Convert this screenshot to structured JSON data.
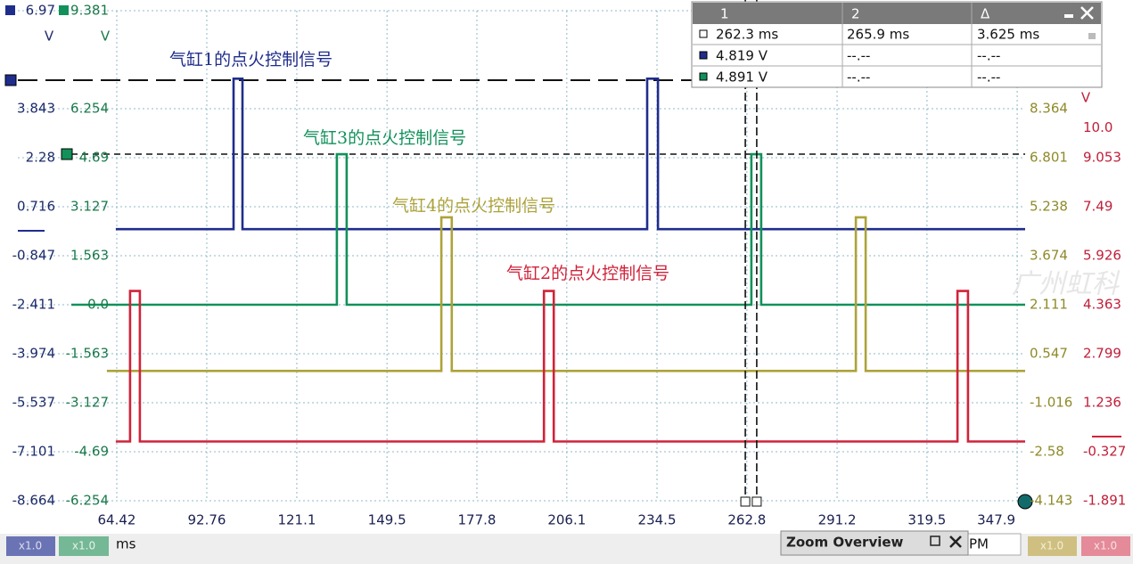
{
  "chart_data": {
    "type": "line",
    "x_unit": "ms",
    "xlim": [
      33.27,
      350.4
    ],
    "xticks": [
      64.42,
      92.76,
      121.1,
      149.5,
      177.8,
      206.1,
      234.5,
      262.8,
      291.2,
      319.5,
      347.9
    ],
    "grid": true,
    "channels": [
      {
        "name": "气缸1的点火控制信号",
        "color": "#1f2d8c",
        "unit": "V",
        "ylim": [
          -8.664,
          6.97
        ],
        "yticks": [
          6.97,
          3.843,
          2.28,
          0.716,
          -0.847,
          -2.411,
          -3.974,
          -5.537,
          -7.101,
          -8.664
        ],
        "x": [
          64.1,
          101.2,
          101.2,
          104.0,
          104.0,
          231.4,
          231.4,
          234.8,
          234.8,
          350.4
        ],
        "values": [
          0,
          0,
          4.8,
          4.8,
          0,
          0,
          4.8,
          4.8,
          0,
          0
        ]
      },
      {
        "name": "气缸3的点火控制信号",
        "color": "#12915a",
        "unit": "V",
        "ylim": [
          -6.254,
          9.381
        ],
        "yticks": [
          9.381,
          6.254,
          4.69,
          3.127,
          1.563,
          {
            "value": 0,
            "label": "0.0"
          },
          -1.563,
          -3.127,
          -4.69,
          -6.254
        ],
        "x": [
          50.1,
          133.7,
          133.7,
          136.8,
          136.8,
          264.2,
          264.2,
          267.3,
          267.3,
          350.4
        ],
        "values": [
          0,
          0,
          4.8,
          4.8,
          0,
          0,
          4.8,
          4.8,
          0,
          0
        ]
      },
      {
        "name": "气缸4的点火控制信号",
        "color": "#ada23a",
        "ylim": [
          -4.143,
          11.492
        ],
        "yticks": [
          8.364,
          6.801,
          5.238,
          3.674,
          2.111,
          0.547,
          -1.016,
          -2.58,
          -4.143
        ],
        "x": [
          61.3,
          166.6,
          166.6,
          169.9,
          169.9,
          297.1,
          297.1,
          300.2,
          300.2,
          350.4
        ],
        "values": [
          0,
          0,
          4.9,
          4.9,
          0,
          0,
          4.9,
          4.9,
          0,
          0
        ]
      },
      {
        "name": "气缸2的点火控制信号",
        "color": "#d0233a",
        "unit": "V",
        "ylim": [
          -1.891,
          13.744
        ],
        "yticks": [
          {
            "value": 10,
            "label": "10.0"
          },
          9.053,
          7.49,
          5.926,
          4.363,
          2.799,
          1.236,
          -0.327,
          -1.891
        ],
        "x": [
          64.1,
          68.6,
          68.6,
          71.7,
          71.7,
          198.9,
          198.9,
          202.0,
          202.0,
          329.1,
          329.1,
          332.4,
          332.4,
          350.4
        ],
        "values": [
          0,
          0,
          4.8,
          4.8,
          0,
          0,
          4.8,
          4.8,
          0,
          0,
          4.8,
          4.8,
          0,
          0
        ]
      }
    ],
    "cursors": [
      262.3,
      265.9
    ],
    "watermark": "广州虹科"
  },
  "cursor_table": {
    "headers": [
      "1",
      "2",
      "Δ"
    ],
    "rows": [
      [
        "262.3 ms",
        "265.9 ms",
        "3.625 ms"
      ],
      [
        "4.819 V",
        "--.--",
        "--.--"
      ],
      [
        "4.891 V",
        "--.--",
        "--.--"
      ]
    ]
  },
  "bottom_bar": {
    "scales": [
      "x1.0",
      "x1.0",
      "x1.0",
      "x1.0"
    ],
    "unit": "ms",
    "zoom_title": "Zoom Overview",
    "fragment": "PM"
  }
}
